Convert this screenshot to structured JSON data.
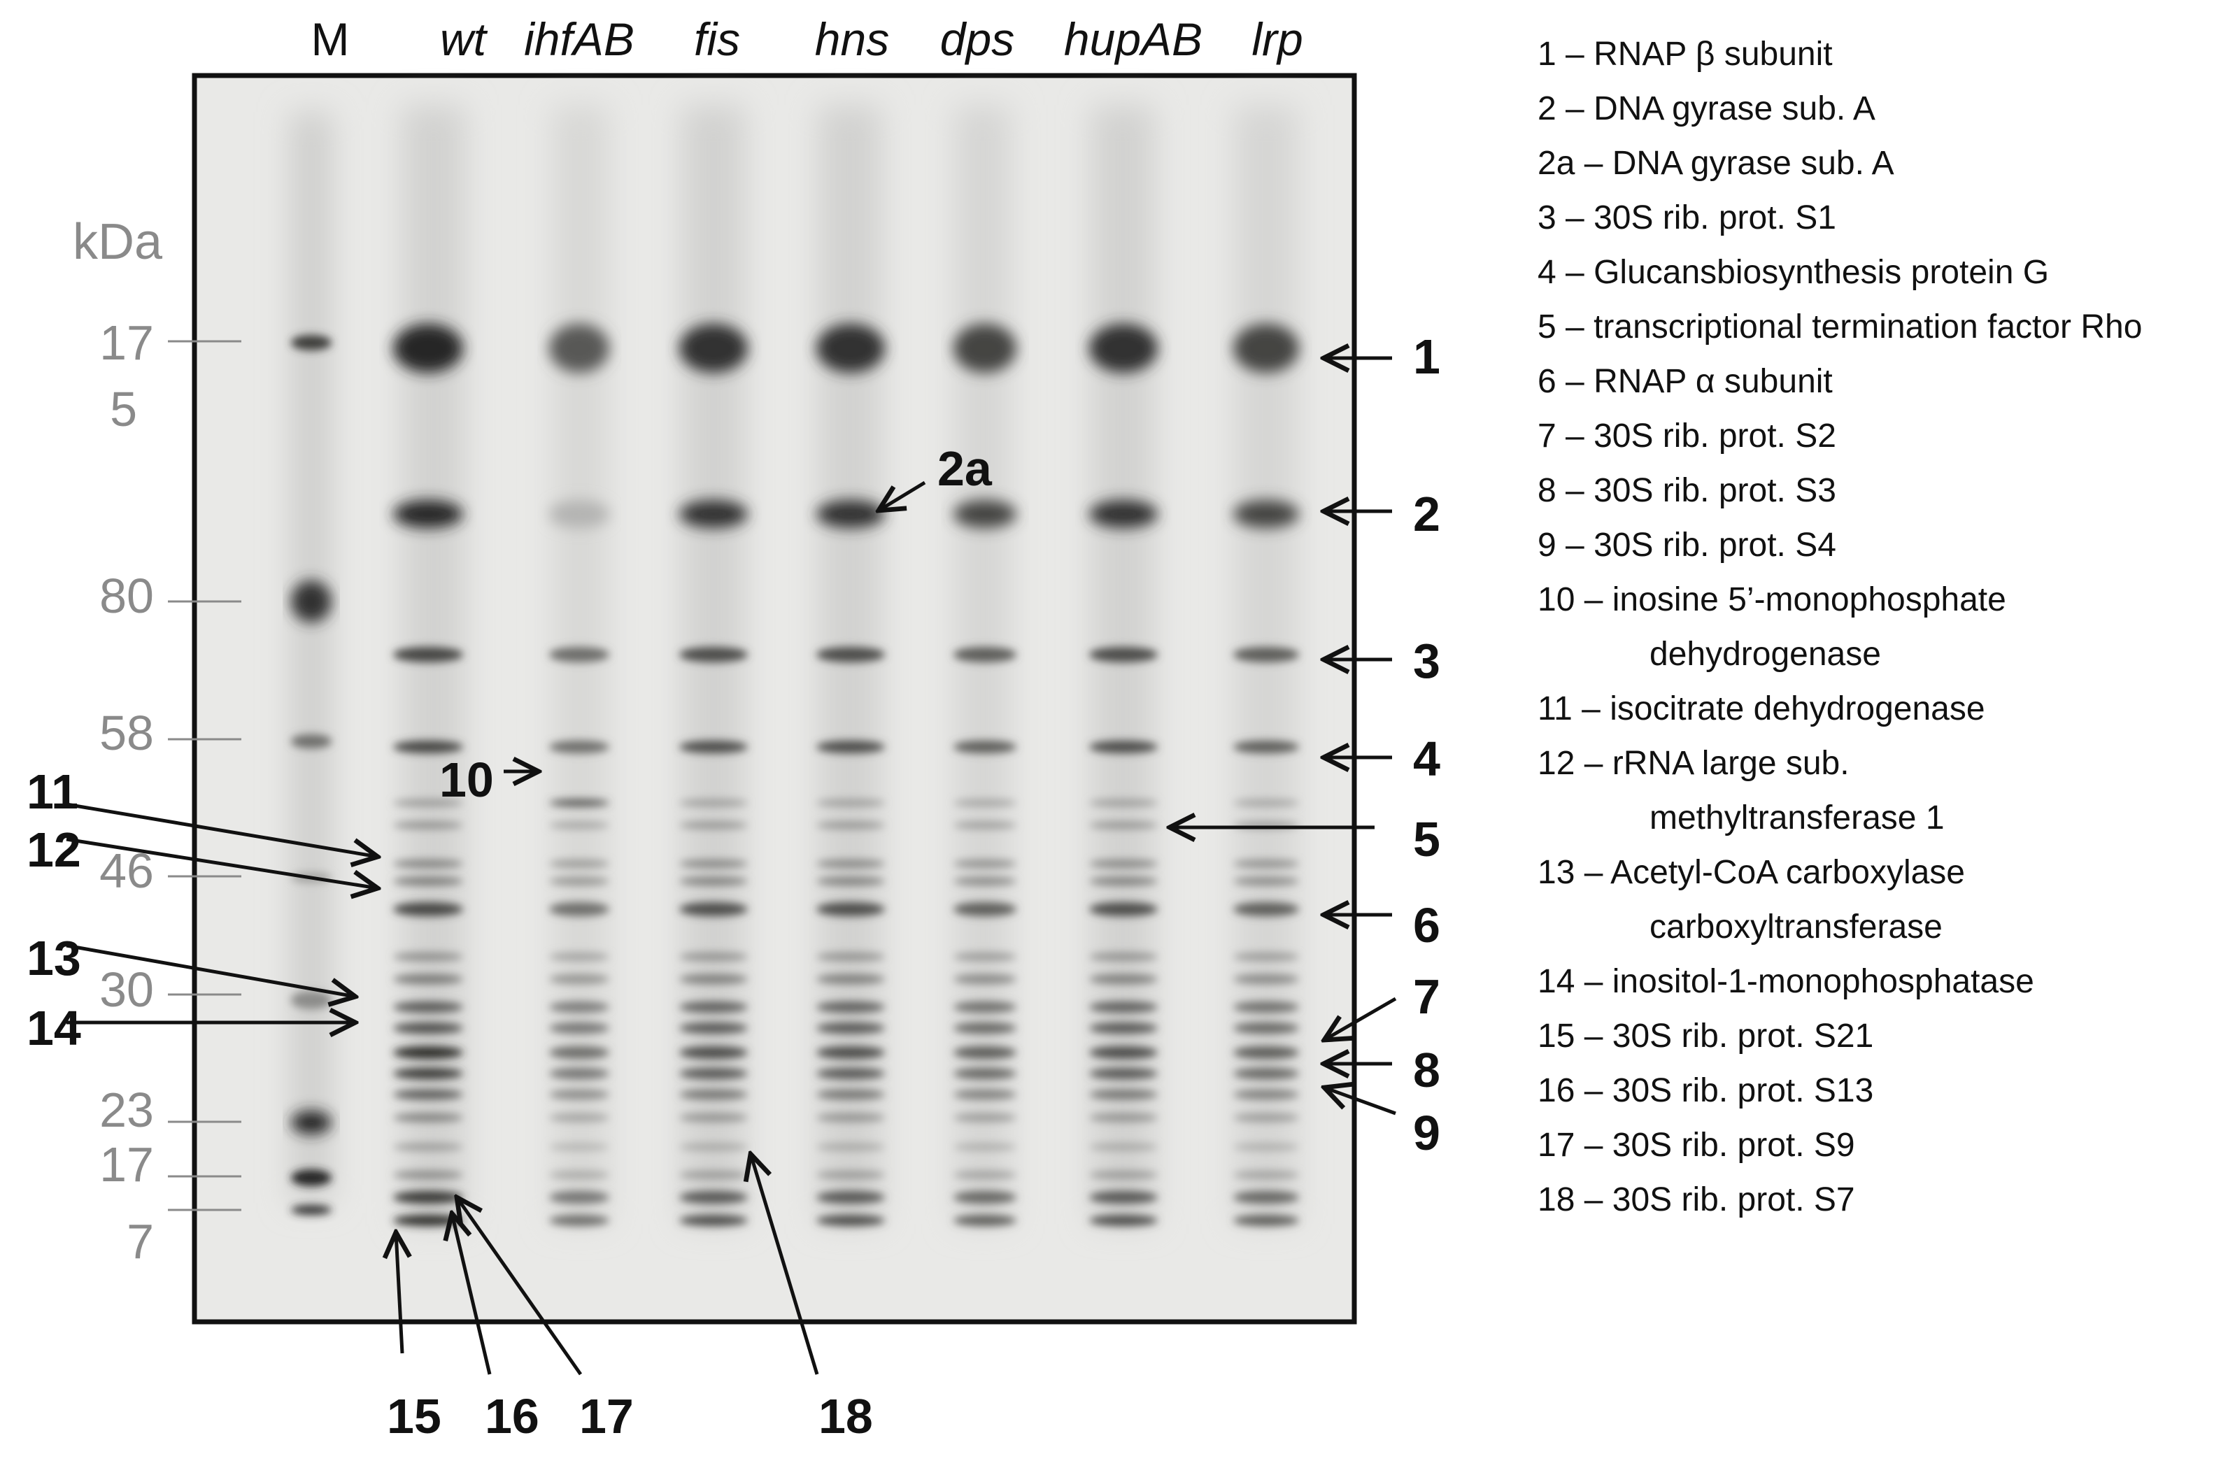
{
  "lanes": {
    "marker": "M",
    "wt": "wt",
    "ihfAB": "ihfAB",
    "fis": "fis",
    "hns": "hns",
    "dps": "dps",
    "hupAB": "hupAB",
    "lrp": "lrp"
  },
  "mw": {
    "unit": "kDa",
    "m175a": "17",
    "m175b": "5",
    "m80": "80",
    "m58": "58",
    "m46": "46",
    "m30": "30",
    "m23": "23",
    "m17": "17",
    "m7": "7"
  },
  "band_numbers": {
    "n1": "1",
    "n2": "2",
    "n2a": "2a",
    "n3": "3",
    "n4": "4",
    "n5": "5",
    "n6": "6",
    "n7": "7",
    "n8": "8",
    "n9": "9",
    "n10": "10",
    "n11": "11",
    "n12": "12",
    "n13": "13",
    "n14": "14",
    "n15": "15",
    "n16": "16",
    "n17": "17",
    "n18": "18"
  },
  "legend": [
    {
      "line": "1 – RNAP β subunit"
    },
    {
      "line": "2 – DNA gyrase sub. A"
    },
    {
      "line": "2a – DNA gyrase sub. A"
    },
    {
      "line": "3 – 30S rib. prot. S1"
    },
    {
      "line": "4 – Glucansbiosynthesis protein G"
    },
    {
      "line": "5 – transcriptional termination factor Rho"
    },
    {
      "line": "6 – RNAP α subunit"
    },
    {
      "line": "7 – 30S rib. prot. S2"
    },
    {
      "line": "8 – 30S rib. prot. S3"
    },
    {
      "line": "9 – 30S rib. prot. S4"
    },
    {
      "line": "10 – inosine 5’-monophosphate",
      "cont": "dehydrogenase"
    },
    {
      "line": "11 –  isocitrate dehydrogenase"
    },
    {
      "line": "12 – rRNA large sub.",
      "cont": "methyltransferase 1"
    },
    {
      "line": "13 – Acetyl-CoA carboxylase",
      "cont": "carboxyltransferase"
    },
    {
      "line": "14 – inositol-1-monophosphatase"
    },
    {
      "line": "15 – 30S rib. prot. S21"
    },
    {
      "line": "16 – 30S rib. prot. S13"
    },
    {
      "line": "17 – 30S rib. prot. S9"
    },
    {
      "line": "18 – 30S rib. prot. S7"
    }
  ]
}
